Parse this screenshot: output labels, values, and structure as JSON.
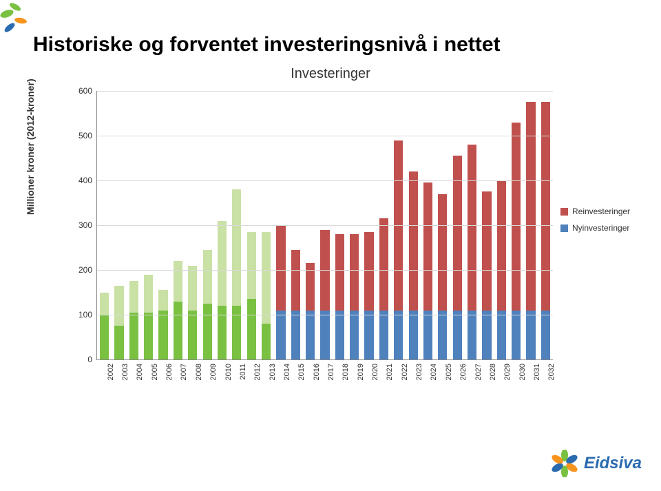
{
  "title": "Historiske og forventet investeringsnivå i nettet",
  "brand": "Eidsiva",
  "chart": {
    "type": "stacked-bar",
    "title": "Investeringer",
    "ylabel": "Millioner kroner (2012-kroner)",
    "ylim": [
      0,
      600
    ],
    "ytick_step": 100,
    "background_color": "#ffffff",
    "grid_color": "#d9d9d9",
    "axis_color": "#888888",
    "bar_width": 0.62,
    "label_fontsize": 12,
    "title_fontsize": 20,
    "categories": [
      "2002",
      "2003",
      "2004",
      "2005",
      "2006",
      "2007",
      "2008",
      "2009",
      "2010",
      "2011",
      "2012",
      "2013",
      "2014",
      "2015",
      "2016",
      "2017",
      "2018",
      "2019",
      "2020",
      "2021",
      "2022",
      "2023",
      "2024",
      "2025",
      "2026",
      "2027",
      "2028",
      "2029",
      "2030",
      "2031",
      "2032"
    ],
    "historical_until_index": 11,
    "historical_colors": {
      "top": "#c9e1a5",
      "bottom": "#7ac142"
    },
    "series": [
      {
        "name": "Reinvesteringer",
        "color": "#c0504d",
        "values": [
          50,
          90,
          70,
          85,
          45,
          90,
          100,
          120,
          190,
          260,
          150,
          205,
          190,
          135,
          105,
          180,
          170,
          170,
          175,
          205,
          380,
          310,
          285,
          260,
          345,
          370,
          265,
          290,
          420,
          465,
          465
        ]
      },
      {
        "name": "Nyinvesteringer",
        "color": "#4f81bd",
        "values": [
          100,
          75,
          105,
          105,
          110,
          130,
          110,
          125,
          120,
          120,
          135,
          80,
          110,
          110,
          110,
          110,
          110,
          110,
          110,
          110,
          110,
          110,
          110,
          110,
          110,
          110,
          110,
          110,
          110,
          110,
          110
        ]
      }
    ]
  }
}
